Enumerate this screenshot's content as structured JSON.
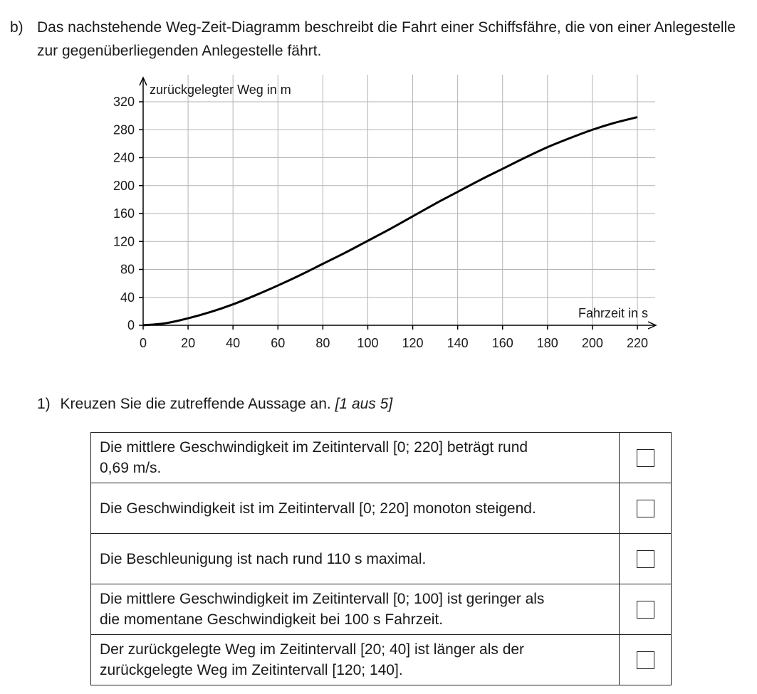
{
  "intro": {
    "label": "b)",
    "text": "Das nachstehende Weg-Zeit-Diagramm beschreibt die Fahrt einer Schiffsfähre, die von einer Anlegestelle zur gegenüberliegenden Anlegestelle fährt."
  },
  "chart_data": {
    "type": "line",
    "ylabel": "zurückgelegter Weg in m",
    "xlabel": "Fahrzeit in s",
    "xlim": [
      0,
      220
    ],
    "ylim": [
      0,
      320
    ],
    "xticks": [
      0,
      20,
      40,
      60,
      80,
      100,
      120,
      140,
      160,
      180,
      200,
      220
    ],
    "yticks": [
      0,
      40,
      80,
      120,
      160,
      200,
      240,
      280,
      320
    ],
    "grid": true,
    "series": [
      {
        "x": [
          0,
          10,
          20,
          30,
          40,
          50,
          60,
          70,
          80,
          90,
          100,
          110,
          120,
          130,
          140,
          150,
          160,
          170,
          180,
          190,
          200,
          210,
          220
        ],
        "y": [
          0,
          3,
          10,
          19,
          30,
          43,
          57,
          72,
          88,
          104,
          121,
          138,
          156,
          174,
          191,
          208,
          224,
          240,
          255,
          268,
          280,
          290,
          298
        ]
      }
    ]
  },
  "task": {
    "number": "1)",
    "prompt": "Kreuzen Sie die zutreffende Aussage an.",
    "hint": "[1 aus 5]"
  },
  "choices": [
    {
      "line1": "Die mittlere Geschwindigkeit im Zeitintervall [0; 220] beträgt rund",
      "line2": "0,69 m/s.",
      "checked": false
    },
    {
      "line1": "Die Geschwindigkeit ist im Zeitintervall [0; 220] monoton steigend.",
      "line2": "",
      "checked": false
    },
    {
      "line1": "Die Beschleunigung ist nach rund 110 s maximal.",
      "line2": "",
      "checked": false
    },
    {
      "line1": "Die mittlere Geschwindigkeit im Zeitintervall [0; 100] ist geringer als",
      "line2": "die momentane Geschwindigkeit bei 100 s Fahrzeit.",
      "checked": false
    },
    {
      "line1": "Der zurückgelegte Weg im Zeitintervall [20; 40] ist länger als der",
      "line2": "zurückgelegte Weg im Zeitintervall [120; 140].",
      "checked": false
    }
  ]
}
